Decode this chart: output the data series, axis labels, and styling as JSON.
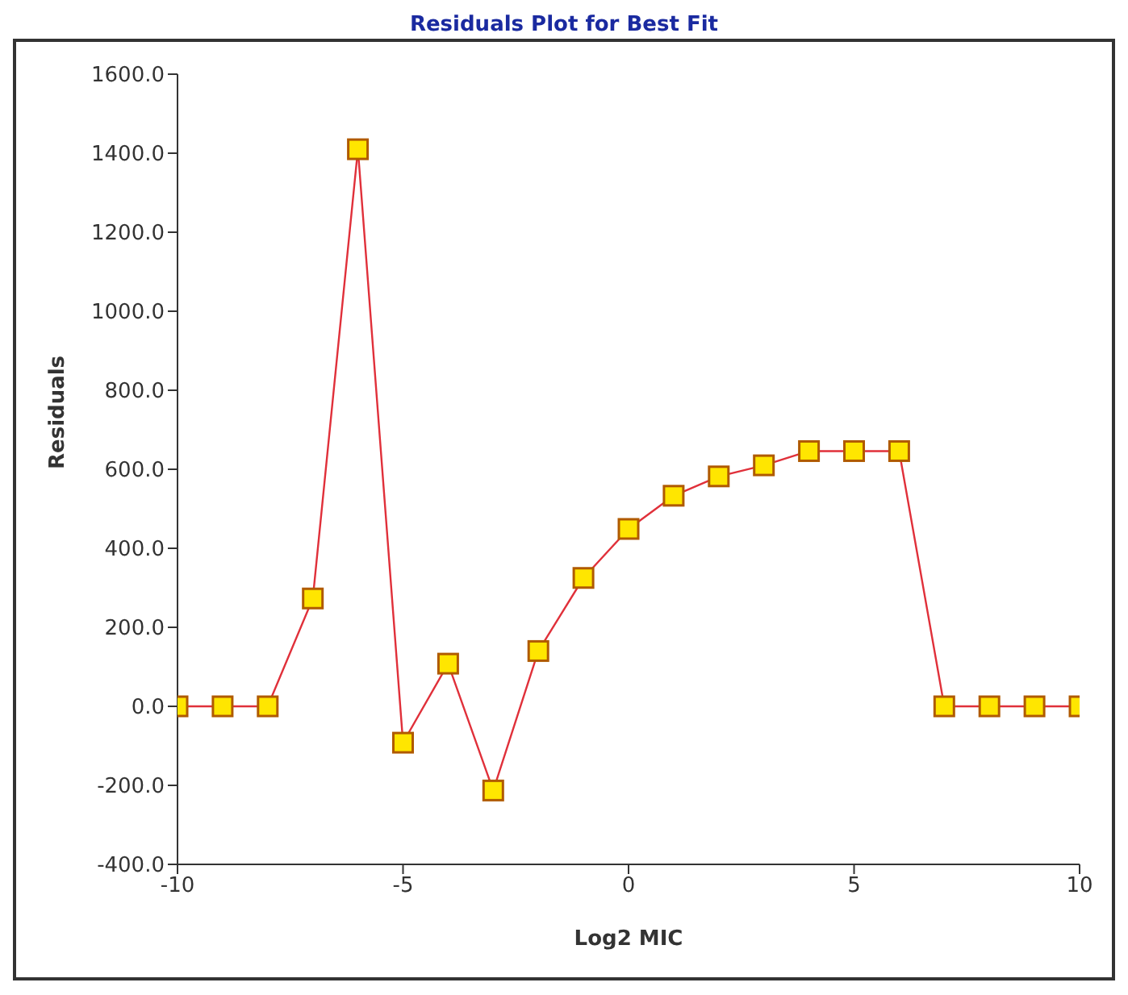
{
  "chart_data": {
    "type": "line",
    "title": "Residuals Plot for Best Fit",
    "xlabel": "Log2 MIC",
    "ylabel": "Residuals",
    "x": [
      -10,
      -9,
      -8,
      -7,
      -6,
      -5,
      -4,
      -3,
      -2,
      -1,
      0,
      1,
      2,
      3,
      4,
      5,
      6,
      7,
      8,
      9,
      10
    ],
    "series": [
      {
        "color": "#e0303a",
        "values": [
          0,
          0,
          0,
          273,
          1410,
          -92,
          108,
          -213,
          140,
          325,
          449,
          533,
          582,
          610,
          646,
          646,
          646,
          0,
          0,
          0,
          0
        ]
      }
    ],
    "marker": "square",
    "grid": false,
    "legend": false,
    "xlim": [
      -10,
      10
    ],
    "xticks": [
      -10,
      -5,
      0,
      5,
      10
    ],
    "ylim": [
      -400,
      1600
    ],
    "yticks": [
      {
        "value": -400,
        "label": "-400.0"
      },
      {
        "value": -200,
        "label": "-200.0"
      },
      {
        "value": 0,
        "label": "0.0"
      },
      {
        "value": 200,
        "label": "200.0"
      },
      {
        "value": 400,
        "label": "400.0"
      },
      {
        "value": 600,
        "label": "600.0"
      },
      {
        "value": 800,
        "label": "800.0"
      },
      {
        "value": 1000,
        "label": "1000.0"
      },
      {
        "value": 1200,
        "label": "1200.0"
      },
      {
        "value": 1400,
        "label": "1400.0"
      },
      {
        "value": 1600,
        "label": "1600.0"
      }
    ]
  }
}
